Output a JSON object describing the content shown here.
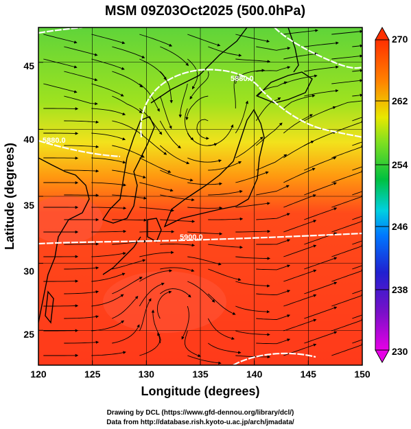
{
  "title": "MSM 09Z03Oct2025 (500.0hPa)",
  "xlabel": "Longitude (degrees)",
  "ylabel": "Latitude  (degrees)",
  "credits": {
    "line1": "Drawing by DCL (https://www.gfd-dennou.org/library/dcl/)",
    "line2": "Data from http://database.rish.kyoto-u.ac.jp/arch/jmadata/"
  },
  "map": {
    "lon_range": [
      120,
      150
    ],
    "lat_range": [
      22.4,
      47.6
    ],
    "lon_ticks": [
      "120",
      "125",
      "130",
      "135",
      "140",
      "145",
      "150"
    ],
    "lat_ticks": [
      "25",
      "30",
      "35",
      "40",
      "45"
    ],
    "gridlines": true,
    "field": "temperature (K)",
    "streamlines": "wind vectors"
  },
  "contours": {
    "labels": [
      "5880.0",
      "5880.0",
      "5900.0"
    ],
    "color": "#ffffff"
  },
  "colorbar": {
    "min": 230,
    "max": 270,
    "ticks": [
      "270",
      "262",
      "254",
      "246",
      "238",
      "230"
    ],
    "colors": [
      "#e600e6",
      "#2020d0",
      "#00c0ff",
      "#00d060",
      "#80e020",
      "#e8e800",
      "#ff8000",
      "#ff3000"
    ]
  }
}
